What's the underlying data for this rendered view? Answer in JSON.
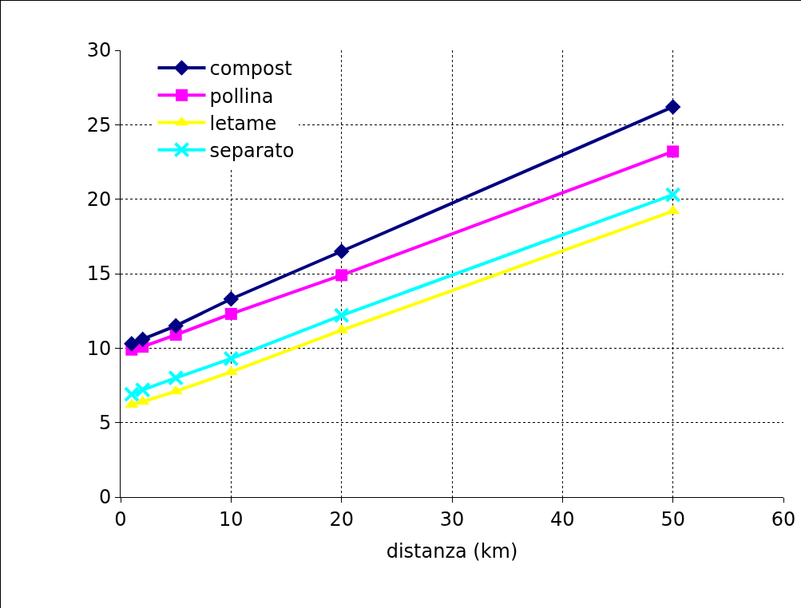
{
  "chart_data": {
    "type": "line",
    "xlabel": "distanza (km)",
    "x": [
      1,
      2,
      5,
      10,
      20,
      50
    ],
    "series": [
      {
        "name": "compost",
        "color": "#000080",
        "marker": "diamond",
        "values": [
          10.3,
          10.6,
          11.5,
          13.3,
          16.5,
          26.2
        ]
      },
      {
        "name": "pollina",
        "color": "#ff00ff",
        "marker": "square",
        "values": [
          9.9,
          10.1,
          10.9,
          12.3,
          14.9,
          23.2
        ]
      },
      {
        "name": "letame",
        "color": "#ffff00",
        "marker": "triangle",
        "values": [
          6.2,
          6.4,
          7.1,
          8.4,
          11.2,
          19.2
        ]
      },
      {
        "name": "separato",
        "color": "#00ffff",
        "marker": "cross",
        "values": [
          6.9,
          7.2,
          8.0,
          9.3,
          12.2,
          20.3
        ]
      }
    ],
    "xlim": [
      0,
      60
    ],
    "xticks": [
      0,
      10,
      20,
      30,
      40,
      50,
      60
    ],
    "ylim": [
      0,
      30
    ],
    "yticks": [
      0,
      5,
      10,
      15,
      20,
      25,
      30
    ],
    "grid": true,
    "legend": "top left",
    "line_style": "solid"
  }
}
